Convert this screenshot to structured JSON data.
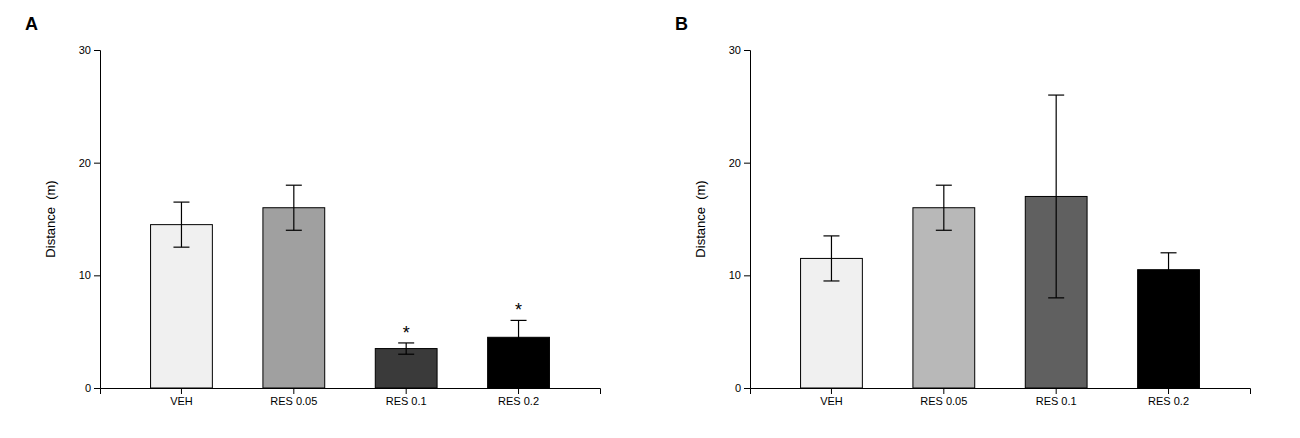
{
  "chart_data": [
    {
      "type": "bar",
      "title": "A",
      "categories": [
        "VEH",
        "RES 0.05",
        "RES 0.1",
        "RES 0.2"
      ],
      "values": [
        14.5,
        16.0,
        3.5,
        4.5
      ],
      "errors": [
        2.0,
        2.0,
        0.5,
        1.5
      ],
      "colors": [
        "#f0f0f0",
        "#a0a0a0",
        "#3a3a3a",
        "#000000"
      ],
      "annotations": [
        {
          "category": "RES 0.1",
          "text": "*"
        },
        {
          "category": "RES 0.2",
          "text": "*"
        }
      ],
      "ylabel": "Distance  (m)",
      "ylim": [
        0,
        30
      ],
      "yticks": [
        0,
        10,
        20,
        30
      ],
      "grid": false
    },
    {
      "type": "bar",
      "title": "B",
      "categories": [
        "VEH",
        "RES 0.05",
        "RES 0.1",
        "RES 0.2"
      ],
      "values": [
        11.5,
        16.0,
        17.0,
        10.5
      ],
      "errors": [
        2.0,
        2.0,
        9.0,
        1.5
      ],
      "colors": [
        "#f0f0f0",
        "#b8b8b8",
        "#606060",
        "#000000"
      ],
      "ylabel": "Distance  (m)",
      "ylim": [
        0,
        30
      ],
      "yticks": [
        0,
        10,
        20,
        30
      ],
      "grid": false
    }
  ]
}
